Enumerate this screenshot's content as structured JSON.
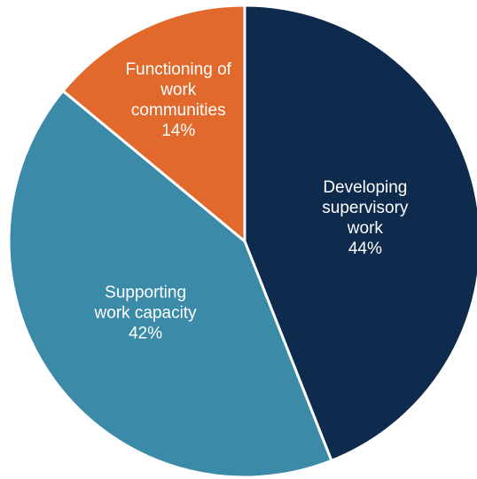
{
  "chart_data": {
    "type": "pie",
    "categories": [
      "Developing supervisory work",
      "Supporting work capacity",
      "Functioning of work communities"
    ],
    "values": [
      44,
      42,
      14
    ],
    "value_labels": [
      "44%",
      "42%",
      "14%"
    ],
    "colors": [
      "#0e2a4c",
      "#3b8aa7",
      "#e0692b"
    ]
  }
}
